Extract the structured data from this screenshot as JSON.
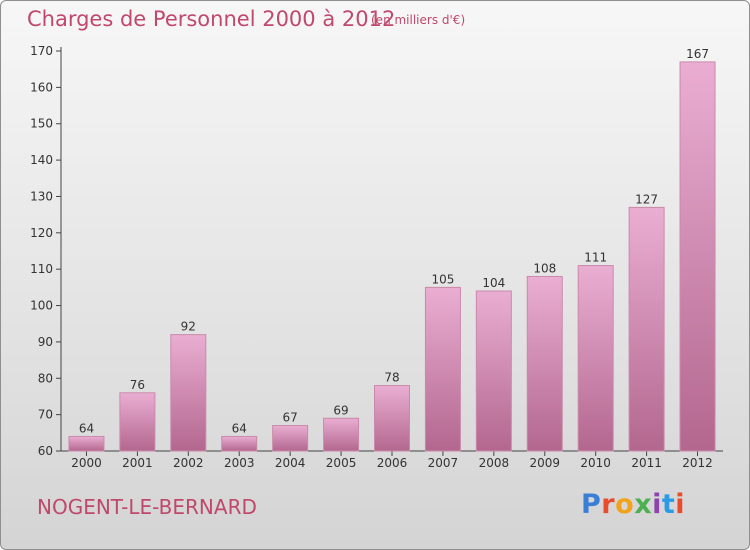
{
  "title": "Charges de Personnel 2000 à 2012",
  "unit_note": "(en milliers d'€)",
  "commune": "NOGENT-LE-BERNARD",
  "logo": {
    "letters": [
      "P",
      "r",
      "o",
      "x",
      "i",
      "t",
      "i"
    ],
    "colors": [
      "#3a7fd5",
      "#e94b2b",
      "#f2a31b",
      "#4caf50",
      "#8e44ad",
      "#2b9be8",
      "#e94b2b"
    ]
  },
  "colors": {
    "bar_top": "#eaaed2",
    "bar_bottom": "#b3678f",
    "bar_edge": "#c98aa9",
    "accent": "#c0486c"
  },
  "chart_data": {
    "type": "bar",
    "categories": [
      "2000",
      "2001",
      "2002",
      "2003",
      "2004",
      "2005",
      "2006",
      "2007",
      "2008",
      "2009",
      "2010",
      "2011",
      "2012"
    ],
    "values": [
      64,
      76,
      92,
      64,
      67,
      69,
      78,
      105,
      104,
      108,
      111,
      127,
      167
    ],
    "data_labels": [
      "64",
      "76",
      "92",
      "64",
      "67",
      "69",
      "78",
      "105",
      "104",
      "108",
      "111",
      "127",
      "167"
    ],
    "ylim": [
      60,
      170
    ],
    "yticks": [
      60,
      70,
      80,
      90,
      100,
      110,
      120,
      130,
      140,
      150,
      160,
      170
    ],
    "grid": false
  }
}
